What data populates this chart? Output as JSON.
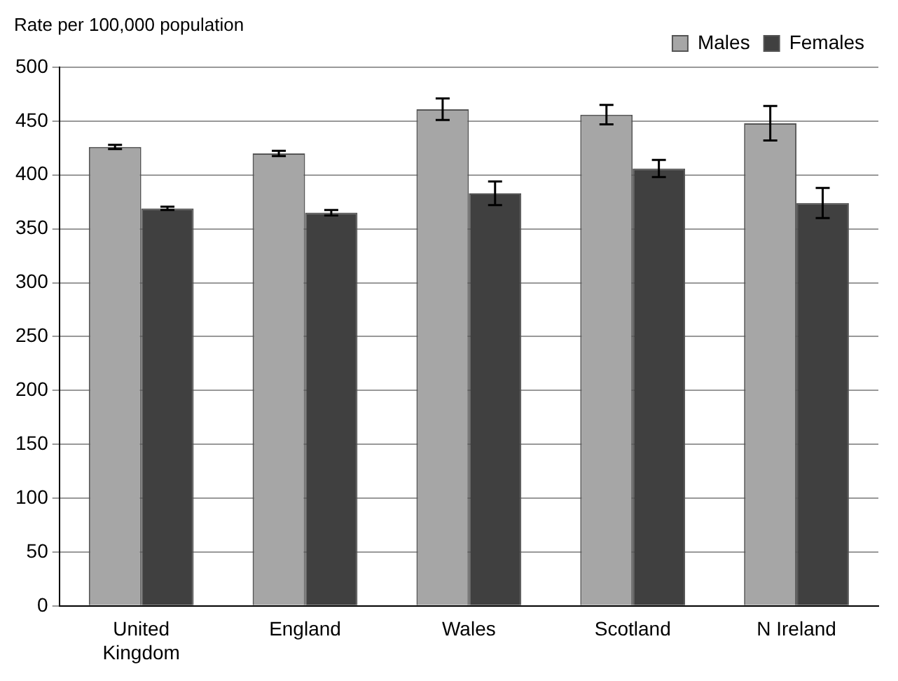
{
  "chart_data": {
    "type": "bar",
    "ylabel": "Rate per 100,000 population",
    "categories": [
      "United Kingdom",
      "England",
      "Wales",
      "Scotland",
      "N Ireland"
    ],
    "series": [
      {
        "name": "Males",
        "color": "#a6a6a6",
        "values": [
          426,
          420,
          461,
          456,
          448
        ],
        "errors": [
          2,
          2.5,
          10,
          9,
          16
        ]
      },
      {
        "name": "Females",
        "color": "#404040",
        "values": [
          369,
          365,
          383,
          406,
          374
        ],
        "errors": [
          1.5,
          2.5,
          11,
          8,
          14
        ]
      }
    ],
    "ylim": [
      0,
      500
    ],
    "yticks": [
      0,
      50,
      100,
      150,
      200,
      250,
      300,
      350,
      400,
      450,
      500
    ],
    "grid": "y",
    "legend": "top right"
  }
}
